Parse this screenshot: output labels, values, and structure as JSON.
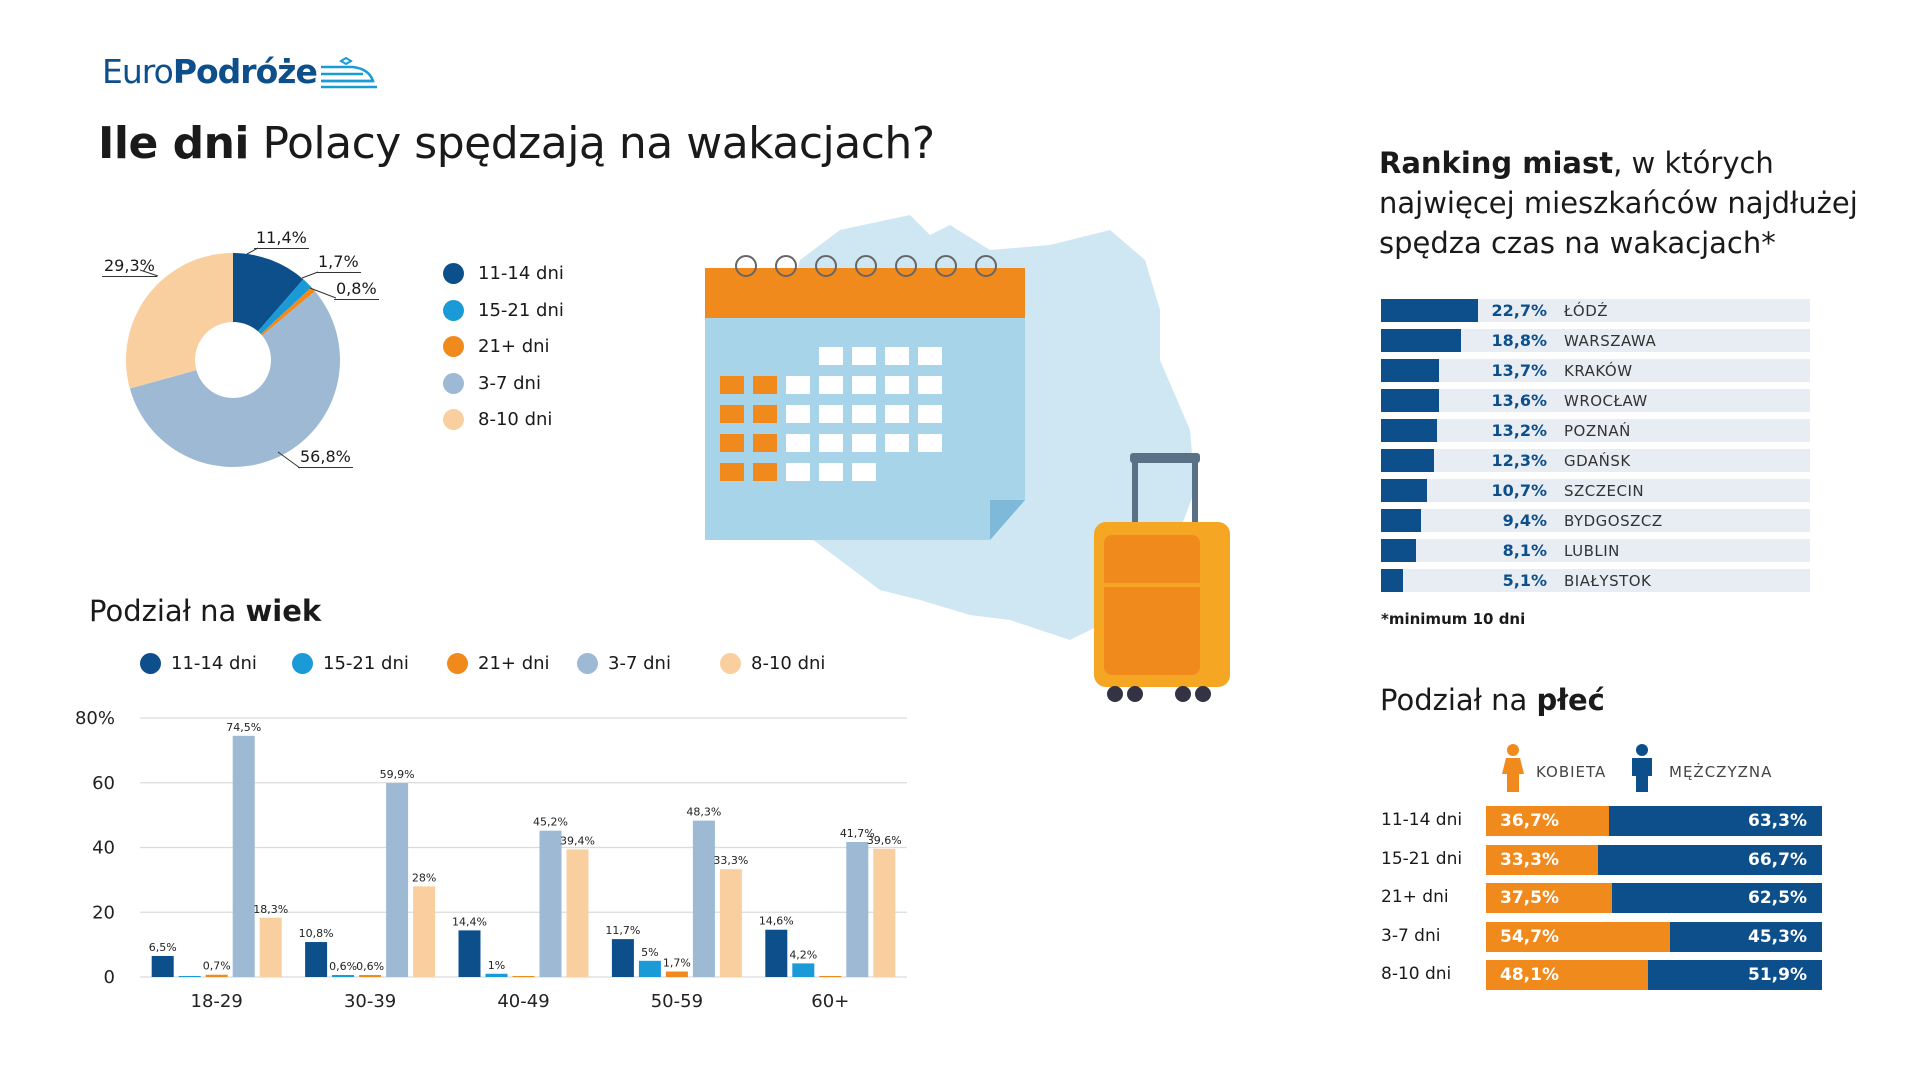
{
  "logo": {
    "part1": "Euro",
    "part2": "Podróże"
  },
  "title": {
    "bold": "Ile dni",
    "rest": " Polacy spędzają na wakacjach?"
  },
  "colors": {
    "11-14 dni": "#0d4f8b",
    "15-21 dni": "#1a9ad6",
    "21+ dni": "#f08a1d",
    "3-7 dni": "#9db9d3",
    "8-10 dni": "#f9cfa0"
  },
  "chart_data": [
    {
      "type": "pie",
      "donut": true,
      "legend": "right",
      "slices": [
        {
          "name": "11-14 dni",
          "value": 11.4,
          "label": "11,4%"
        },
        {
          "name": "15-21 dni",
          "value": 1.7,
          "label": "1,7%"
        },
        {
          "name": "21+ dni",
          "value": 0.8,
          "label": "0,8%"
        },
        {
          "name": "3-7 dni",
          "value": 56.8,
          "label": "56,8%"
        },
        {
          "name": "8-10 dni",
          "value": 29.3,
          "label": "29,3%"
        }
      ]
    },
    {
      "type": "bar",
      "title_regular": "Podział na ",
      "title_bold": "wiek",
      "categories": [
        "18-29",
        "30-39",
        "40-49",
        "50-59",
        "60+"
      ],
      "yticks": [
        "0",
        "20",
        "40",
        "60",
        "80%"
      ],
      "ylim": [
        0,
        80
      ],
      "grid": true,
      "legend": "top",
      "series": [
        {
          "name": "11-14 dni",
          "values": [
            6.5,
            10.8,
            14.4,
            11.7,
            14.6
          ]
        },
        {
          "name": "15-21 dni",
          "values": [
            null,
            0.6,
            1,
            5,
            4.2
          ]
        },
        {
          "name": "21+ dni",
          "values": [
            0.7,
            0.6,
            null,
            1.7,
            null
          ]
        },
        {
          "name": "3-7 dni",
          "values": [
            74.5,
            59.9,
            45.2,
            48.3,
            41.7
          ]
        },
        {
          "name": "8-10 dni",
          "values": [
            18.3,
            28,
            39.4,
            33.3,
            39.6
          ]
        }
      ]
    },
    {
      "type": "bar",
      "orientation": "horizontal",
      "title_bold": "Ranking miast",
      "title_rest": ", w których najwięcej mieszkańców najdłużej spędza czas na wakacjach*",
      "rows": [
        {
          "city": "ŁÓDŹ",
          "value": 22.7,
          "label": "22,7%"
        },
        {
          "city": "WARSZAWA",
          "value": 18.8,
          "label": "18,8%"
        },
        {
          "city": "KRAKÓW",
          "value": 13.7,
          "label": "13,7%"
        },
        {
          "city": "WROCŁAW",
          "value": 13.6,
          "label": "13,6%"
        },
        {
          "city": "POZNAŃ",
          "value": 13.2,
          "label": "13,2%"
        },
        {
          "city": "GDAŃSK",
          "value": 12.3,
          "label": "12,3%"
        },
        {
          "city": "SZCZECIN",
          "value": 10.7,
          "label": "10,7%"
        },
        {
          "city": "BYDGOSZCZ",
          "value": 9.4,
          "label": "9,4%"
        },
        {
          "city": "LUBLIN",
          "value": 8.1,
          "label": "8,1%"
        },
        {
          "city": "BIAŁYSTOK",
          "value": 5.1,
          "label": "5,1%"
        }
      ],
      "footnote": "*minimum 10 dni"
    },
    {
      "type": "bar",
      "stacked": true,
      "orientation": "horizontal",
      "title_regular": "Podział na ",
      "title_bold": "płeć",
      "legend": {
        "female": "KOBIETA",
        "male": "MĘŻCZYZNA"
      },
      "rows": [
        {
          "label": "11-14 dni",
          "female": 36.7,
          "male": 63.3,
          "female_label": "36,7%",
          "male_label": "63,3%"
        },
        {
          "label": "15-21 dni",
          "female": 33.3,
          "male": 66.7,
          "female_label": "33,3%",
          "male_label": "66,7%"
        },
        {
          "label": "21+ dni",
          "female": 37.5,
          "male": 62.5,
          "female_label": "37,5%",
          "male_label": "62,5%"
        },
        {
          "label": "3-7 dni",
          "female": 54.7,
          "male": 45.3,
          "female_label": "54,7%",
          "male_label": "45,3%"
        },
        {
          "label": "8-10 dni",
          "female": 48.1,
          "male": 51.9,
          "female_label": "48,1%",
          "male_label": "51,9%"
        }
      ]
    }
  ]
}
